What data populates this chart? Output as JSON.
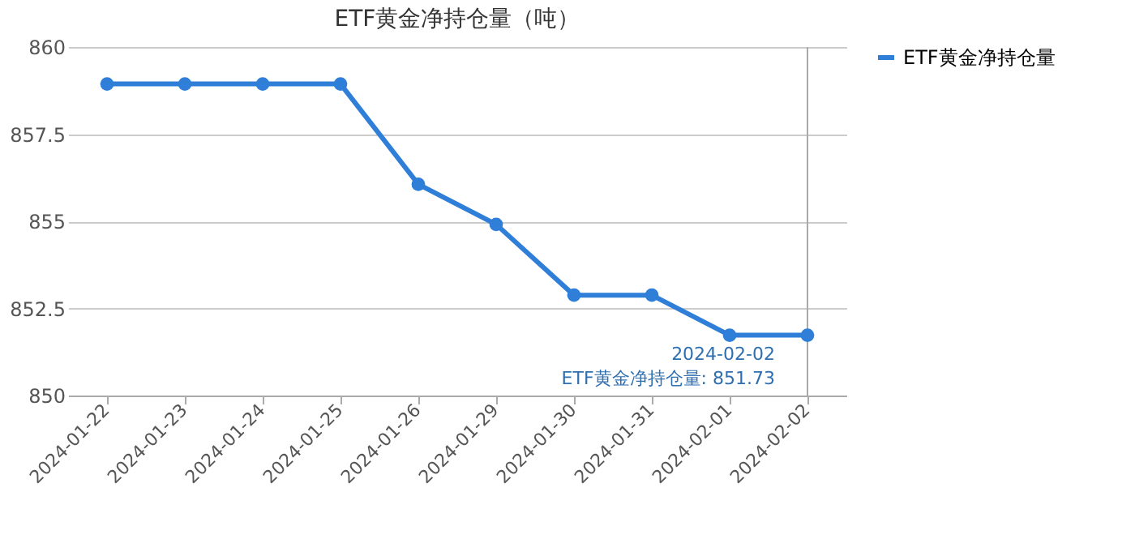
{
  "chart_data": {
    "type": "line",
    "title": "ETF黄金净持仓量（吨）",
    "categories": [
      "2024-01-22",
      "2024-01-23",
      "2024-01-24",
      "2024-01-25",
      "2024-01-26",
      "2024-01-29",
      "2024-01-30",
      "2024-01-31",
      "2024-02-01",
      "2024-02-02"
    ],
    "series": [
      {
        "name": "ETF黄金净持仓量",
        "color": "#2f7ed8",
        "values": [
          858.94,
          858.94,
          858.94,
          858.94,
          856.06,
          854.91,
          852.88,
          852.88,
          851.73,
          851.73
        ]
      }
    ],
    "ylim": [
      850,
      860
    ],
    "yticks": [
      850,
      852.5,
      855,
      857.5,
      860
    ],
    "grid": "y",
    "legend": "right",
    "marker": "circle",
    "line_style": "solid",
    "ref_lines": [
      {
        "axis": "x",
        "value": "2024-02-02",
        "color": "#aaaaaa"
      }
    ],
    "annotations": [
      {
        "text": "2024-02-02\nETF黄金净持仓量: 851.73",
        "x": "2024-02-02",
        "y": 851.73
      }
    ]
  }
}
